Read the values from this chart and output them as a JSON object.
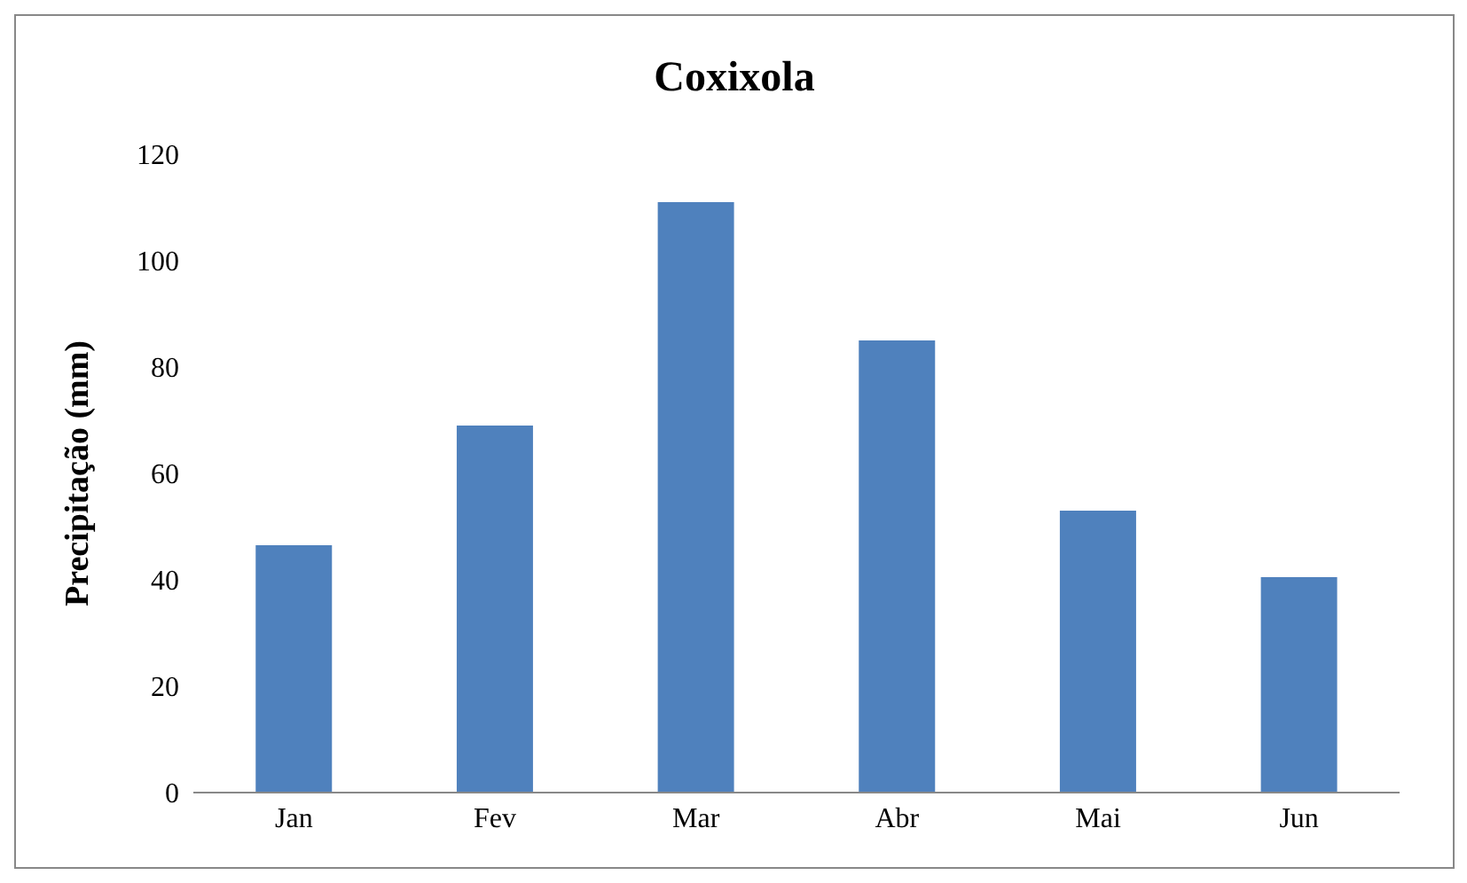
{
  "chart_data": {
    "type": "bar",
    "title": "Coxixola",
    "ylabel": "Precipitação (mm)",
    "categories": [
      "Jan",
      "Fev",
      "Mar",
      "Abr",
      "Mai",
      "Jun"
    ],
    "values": [
      46.5,
      69,
      111,
      85,
      53,
      40.5
    ],
    "color": "#4f81bd",
    "ylim": [
      0,
      120
    ],
    "yticks": [
      0,
      20,
      40,
      60,
      80,
      100,
      120
    ],
    "grid": false
  }
}
